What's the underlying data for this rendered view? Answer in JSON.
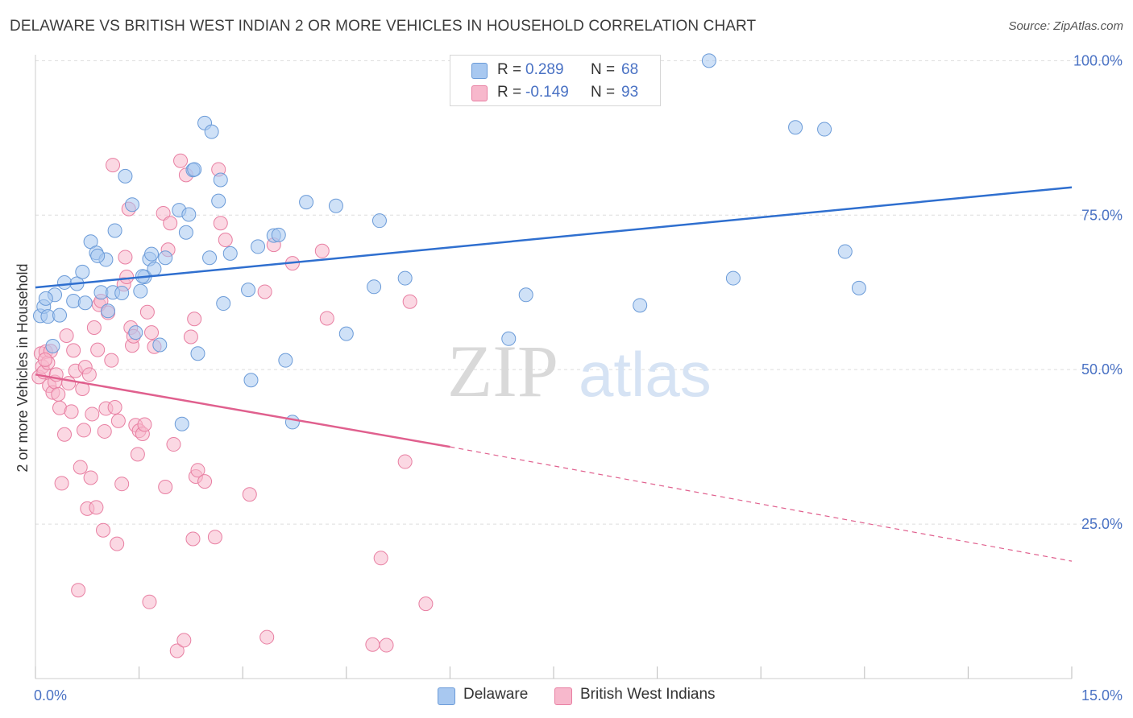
{
  "header": {
    "title": "DELAWARE VS BRITISH WEST INDIAN 2 OR MORE VEHICLES IN HOUSEHOLD CORRELATION CHART",
    "source": "Source: ZipAtlas.com"
  },
  "watermark": {
    "zip": "ZIP",
    "atlas": "atlas"
  },
  "colors": {
    "blue_fill": "#a8c8f0",
    "blue_stroke": "#6b9bd8",
    "blue_line": "#2f6fcf",
    "pink_fill": "#f7b8cc",
    "pink_stroke": "#e87fa2",
    "pink_line": "#e0608e",
    "axis_text": "#4a72c4",
    "grid": "#dddddd"
  },
  "legend": {
    "rows": [
      {
        "r_label": "R =",
        "r_value": "0.289",
        "n_label": "N =",
        "n_value": "68"
      },
      {
        "r_label": "R =",
        "r_value": "-0.149",
        "n_label": "N =",
        "n_value": "93"
      }
    ]
  },
  "bottom_legend": {
    "series1": "Delaware",
    "series2": "British West Indians"
  },
  "chart_data": {
    "type": "scatter",
    "title": "DELAWARE VS BRITISH WEST INDIAN 2 OR MORE VEHICLES IN HOUSEHOLD CORRELATION CHART",
    "xlabel": "",
    "ylabel": "2 or more Vehicles in Household",
    "xlim": [
      0,
      15
    ],
    "ylim": [
      0,
      102
    ],
    "x_tick_labels": [
      "0.0%",
      "15.0%"
    ],
    "y_ticks": [
      25,
      50,
      75,
      100
    ],
    "y_tick_labels": [
      "25.0%",
      "50.0%",
      "75.0%",
      "100.0%"
    ],
    "grid": true,
    "legend_position": "top-center",
    "series": [
      {
        "name": "Delaware",
        "r": 0.289,
        "n": 68,
        "trend": {
          "x": [
            0,
            15
          ],
          "y": [
            63.3,
            79.5
          ]
        },
        "points": [
          [
            0.07,
            58.7
          ],
          [
            0.12,
            60.2
          ],
          [
            0.18,
            58.6
          ],
          [
            0.25,
            53.8
          ],
          [
            0.28,
            62.1
          ],
          [
            0.35,
            58.8
          ],
          [
            0.42,
            64.1
          ],
          [
            0.55,
            61.1
          ],
          [
            0.6,
            63.9
          ],
          [
            0.68,
            65.8
          ],
          [
            0.72,
            60.8
          ],
          [
            0.8,
            70.7
          ],
          [
            0.88,
            68.9
          ],
          [
            0.95,
            62.5
          ],
          [
            1.02,
            67.8
          ],
          [
            1.05,
            59.5
          ],
          [
            1.12,
            62.5
          ],
          [
            1.15,
            72.5
          ],
          [
            1.25,
            62.4
          ],
          [
            1.3,
            81.3
          ],
          [
            1.4,
            76.7
          ],
          [
            1.45,
            56.0
          ],
          [
            1.52,
            62.7
          ],
          [
            1.58,
            65.0
          ],
          [
            1.65,
            67.9
          ],
          [
            1.68,
            68.7
          ],
          [
            1.72,
            66.3
          ],
          [
            1.8,
            54.0
          ],
          [
            1.88,
            68.1
          ],
          [
            2.08,
            75.8
          ],
          [
            2.12,
            41.2
          ],
          [
            2.18,
            72.2
          ],
          [
            2.22,
            75.1
          ],
          [
            2.28,
            82.3
          ],
          [
            2.35,
            52.6
          ],
          [
            2.45,
            89.9
          ],
          [
            2.52,
            68.1
          ],
          [
            2.55,
            88.5
          ],
          [
            2.65,
            77.3
          ],
          [
            2.68,
            80.7
          ],
          [
            2.72,
            60.7
          ],
          [
            2.82,
            68.8
          ],
          [
            3.08,
            62.9
          ],
          [
            3.12,
            48.3
          ],
          [
            3.22,
            69.9
          ],
          [
            3.45,
            71.7
          ],
          [
            3.52,
            71.8
          ],
          [
            3.62,
            51.5
          ],
          [
            3.72,
            41.5
          ],
          [
            3.92,
            77.1
          ],
          [
            4.35,
            76.5
          ],
          [
            4.5,
            55.8
          ],
          [
            4.9,
            63.4
          ],
          [
            4.98,
            74.1
          ],
          [
            5.35,
            64.8
          ],
          [
            6.85,
            55.0
          ],
          [
            7.1,
            62.1
          ],
          [
            8.75,
            60.4
          ],
          [
            9.75,
            100.0
          ],
          [
            10.1,
            64.8
          ],
          [
            11.0,
            89.2
          ],
          [
            11.42,
            88.9
          ],
          [
            11.72,
            69.1
          ],
          [
            11.92,
            63.2
          ],
          [
            2.3,
            82.4
          ],
          [
            1.55,
            65.1
          ],
          [
            0.15,
            61.5
          ],
          [
            0.9,
            68.4
          ]
        ]
      },
      {
        "name": "British West Indians",
        "r": -0.149,
        "n": 93,
        "trend": {
          "x": [
            0,
            6
          ],
          "y": [
            49.2,
            37.5
          ]
        },
        "trend_dashed": {
          "x": [
            6,
            15
          ],
          "y": [
            37.5,
            19.0
          ]
        },
        "points": [
          [
            0.05,
            48.8
          ],
          [
            0.08,
            52.6
          ],
          [
            0.1,
            50.5
          ],
          [
            0.12,
            49.6
          ],
          [
            0.15,
            52.9
          ],
          [
            0.18,
            51.1
          ],
          [
            0.2,
            47.4
          ],
          [
            0.22,
            53.0
          ],
          [
            0.25,
            46.3
          ],
          [
            0.28,
            48.0
          ],
          [
            0.3,
            49.2
          ],
          [
            0.35,
            43.8
          ],
          [
            0.38,
            31.6
          ],
          [
            0.42,
            39.5
          ],
          [
            0.45,
            55.5
          ],
          [
            0.48,
            47.8
          ],
          [
            0.52,
            43.2
          ],
          [
            0.55,
            53.1
          ],
          [
            0.58,
            49.8
          ],
          [
            0.62,
            14.3
          ],
          [
            0.65,
            34.2
          ],
          [
            0.68,
            46.9
          ],
          [
            0.7,
            40.2
          ],
          [
            0.72,
            50.4
          ],
          [
            0.75,
            27.5
          ],
          [
            0.78,
            49.2
          ],
          [
            0.8,
            32.5
          ],
          [
            0.82,
            42.8
          ],
          [
            0.85,
            56.8
          ],
          [
            0.88,
            27.7
          ],
          [
            0.9,
            53.2
          ],
          [
            0.92,
            60.5
          ],
          [
            0.95,
            61.1
          ],
          [
            0.98,
            24.0
          ],
          [
            1.0,
            40.0
          ],
          [
            1.02,
            43.7
          ],
          [
            1.05,
            59.2
          ],
          [
            1.1,
            51.5
          ],
          [
            1.12,
            83.1
          ],
          [
            1.15,
            43.9
          ],
          [
            1.18,
            21.8
          ],
          [
            1.2,
            41.7
          ],
          [
            1.25,
            31.5
          ],
          [
            1.28,
            63.8
          ],
          [
            1.3,
            68.2
          ],
          [
            1.32,
            65.0
          ],
          [
            1.35,
            76.0
          ],
          [
            1.38,
            56.8
          ],
          [
            1.4,
            53.9
          ],
          [
            1.42,
            55.4
          ],
          [
            1.45,
            41.0
          ],
          [
            1.48,
            36.3
          ],
          [
            1.5,
            40.1
          ],
          [
            1.55,
            39.6
          ],
          [
            1.58,
            41.1
          ],
          [
            1.62,
            59.3
          ],
          [
            1.65,
            12.4
          ],
          [
            1.68,
            56.0
          ],
          [
            1.72,
            53.7
          ],
          [
            1.85,
            75.3
          ],
          [
            1.88,
            31.0
          ],
          [
            1.92,
            69.4
          ],
          [
            1.95,
            73.7
          ],
          [
            2.0,
            37.9
          ],
          [
            2.05,
            4.5
          ],
          [
            2.1,
            83.8
          ],
          [
            2.15,
            6.2
          ],
          [
            2.18,
            81.5
          ],
          [
            2.25,
            55.3
          ],
          [
            2.28,
            22.6
          ],
          [
            2.3,
            58.2
          ],
          [
            2.32,
            32.7
          ],
          [
            2.35,
            33.7
          ],
          [
            2.45,
            31.9
          ],
          [
            2.6,
            22.9
          ],
          [
            2.65,
            82.4
          ],
          [
            2.68,
            73.7
          ],
          [
            2.75,
            71.0
          ],
          [
            3.1,
            29.8
          ],
          [
            3.32,
            62.6
          ],
          [
            3.35,
            6.7
          ],
          [
            3.45,
            70.2
          ],
          [
            3.72,
            67.2
          ],
          [
            4.15,
            69.2
          ],
          [
            4.22,
            58.3
          ],
          [
            4.88,
            5.5
          ],
          [
            5.0,
            19.5
          ],
          [
            5.08,
            5.4
          ],
          [
            5.35,
            35.1
          ],
          [
            5.42,
            61.0
          ],
          [
            5.65,
            12.1
          ],
          [
            0.14,
            51.6
          ],
          [
            0.33,
            46.0
          ]
        ]
      }
    ]
  }
}
